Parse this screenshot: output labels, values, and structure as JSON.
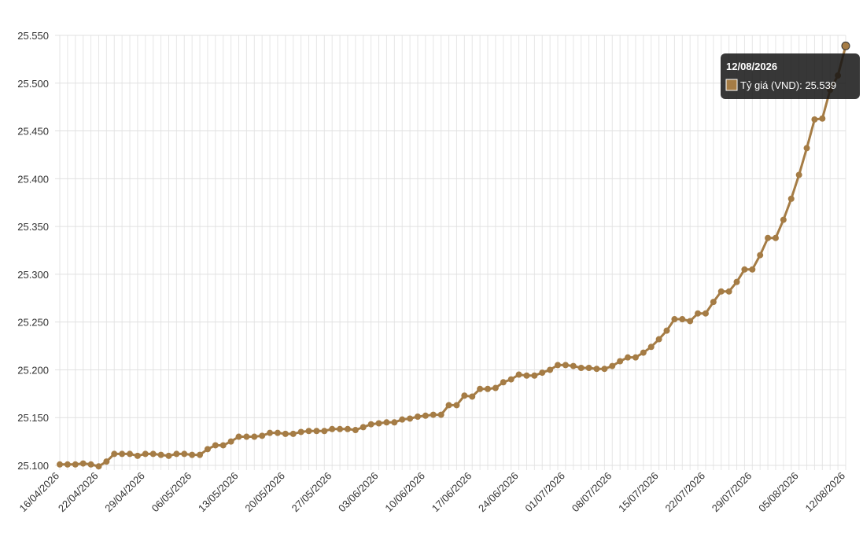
{
  "chart_data": {
    "type": "line",
    "categories": [
      "16/04/2026",
      null,
      null,
      null,
      null,
      "22/04/2026",
      null,
      null,
      null,
      null,
      null,
      "29/04/2026",
      null,
      null,
      null,
      null,
      null,
      "06/05/2026",
      null,
      null,
      null,
      null,
      null,
      "13/05/2026",
      null,
      null,
      null,
      null,
      null,
      "20/05/2026",
      null,
      null,
      null,
      null,
      null,
      "27/05/2026",
      null,
      null,
      null,
      null,
      null,
      "03/06/2026",
      null,
      null,
      null,
      null,
      null,
      "10/06/2026",
      null,
      null,
      null,
      null,
      null,
      "17/06/2026",
      null,
      null,
      null,
      null,
      null,
      "24/06/2026",
      null,
      null,
      null,
      null,
      null,
      "01/07/2026",
      null,
      null,
      null,
      null,
      null,
      "08/07/2026",
      null,
      null,
      null,
      null,
      null,
      "15/07/2026",
      null,
      null,
      null,
      null,
      null,
      "22/07/2026",
      null,
      null,
      null,
      null,
      null,
      "29/07/2026",
      null,
      null,
      null,
      null,
      null,
      "05/08/2026",
      null,
      null,
      null,
      null,
      null,
      "12/08/2026"
    ],
    "values": [
      25101,
      25101,
      25101,
      25102,
      25101,
      25099,
      25104,
      25112,
      25112,
      25112,
      25110,
      25112,
      25112,
      25111,
      25110,
      25112,
      25112,
      25111,
      25111,
      25117,
      25121,
      25121,
      25125,
      25130,
      25130,
      25130,
      25131,
      25134,
      25134,
      25133,
      25133,
      25135,
      25136,
      25136,
      25136,
      25138,
      25138,
      25138,
      25137,
      25140,
      25143,
      25144,
      25145,
      25145,
      25148,
      25149,
      25151,
      25152,
      25153,
      25153,
      25163,
      25163,
      25173,
      25172,
      25180,
      25180,
      25181,
      25187,
      25190,
      25195,
      25194,
      25194,
      25197,
      25200,
      25205,
      25205,
      25204,
      25202,
      25202,
      25201,
      25201,
      25204,
      25209,
      25213,
      25213,
      25218,
      25224,
      25232,
      25241,
      25253,
      25253,
      25251,
      25259,
      25259,
      25271,
      25282,
      25282,
      25292,
      25305,
      25305,
      25320,
      25338,
      25338,
      25357,
      25379,
      25404,
      25432,
      25462,
      25463,
      25493,
      25508,
      25539
    ],
    "color": "#a57c45",
    "ylim": [
      25100,
      25550
    ],
    "yticks": [
      {
        "value": 25100,
        "label": "25.100"
      },
      {
        "value": 25150,
        "label": "25.150"
      },
      {
        "value": 25200,
        "label": "25.200"
      },
      {
        "value": 25250,
        "label": "25.250"
      },
      {
        "value": 25300,
        "label": "25.300"
      },
      {
        "value": 25350,
        "label": "25.350"
      },
      {
        "value": 25400,
        "label": "25.400"
      },
      {
        "value": 25450,
        "label": "25.450"
      },
      {
        "value": 25500,
        "label": "25.500"
      },
      {
        "value": 25550,
        "label": "25.550"
      }
    ],
    "grid": true,
    "tooltip": {
      "title": "12/08/2026",
      "label": "Tỷ giá (VND): 25.539"
    }
  }
}
